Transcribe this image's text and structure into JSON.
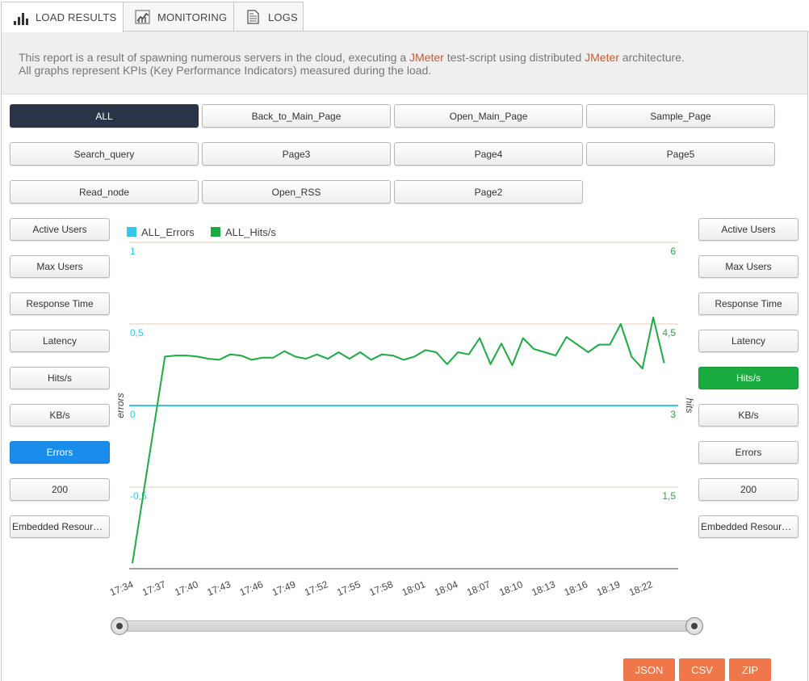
{
  "tabs": [
    {
      "label": "LOAD RESULTS",
      "icon": "bar-chart-icon",
      "active": true
    },
    {
      "label": "MONITORING",
      "icon": "line-chart-icon",
      "active": false
    },
    {
      "label": "LOGS",
      "icon": "document-icon",
      "active": false
    }
  ],
  "description": {
    "part1": "This report is a result of spawning numerous servers in the cloud, executing a ",
    "jmeter1": "JMeter",
    "part2": " test-script using distributed ",
    "jmeter2": "JMeter",
    "part3": " architecture.",
    "line2": "All graphs represent KPIs (Key Performance Indicators) measured during the load."
  },
  "samplers": [
    "ALL",
    "Back_to_Main_Page",
    "Open_Main_Page",
    "Sample_Page",
    "Search_query",
    "Page3",
    "Page4",
    "Page5",
    "Read_node",
    "Open_RSS",
    "Page2"
  ],
  "selected_sampler": "ALL",
  "left_metrics": [
    "Active Users",
    "Max Users",
    "Response Time",
    "Latency",
    "Hits/s",
    "KB/s",
    "Errors",
    "200",
    "Embedded Resources"
  ],
  "left_selected": "Errors",
  "right_metrics": [
    "Active Users",
    "Max Users",
    "Response Time",
    "Latency",
    "Hits/s",
    "KB/s",
    "Errors",
    "200",
    "Embedded Resources"
  ],
  "right_selected": "Hits/s",
  "export": {
    "json": "JSON",
    "csv": "CSV",
    "zip": "ZIP"
  },
  "colors": {
    "errors": "#33c7ec",
    "hits": "#1aac3f",
    "accent_orange": "#f0774a",
    "dark": "#2b3446",
    "blue": "#1a8cec"
  },
  "chart_data": {
    "type": "line",
    "legend": [
      "ALL_Errors",
      "ALL_Hits/s"
    ],
    "legend_position": "top-left",
    "xlabel": "",
    "ylabel_left": "errors",
    "ylabel_right": "hits",
    "ylim_left": [
      -1,
      1
    ],
    "ylim_right": [
      0,
      6
    ],
    "yticks_left": [
      "1",
      "0,5",
      "0",
      "-0,5"
    ],
    "yticks_right": [
      "6",
      "4,5",
      "3",
      "1,5"
    ],
    "xticks": [
      "17:34",
      "17:37",
      "17:40",
      "17:43",
      "17:46",
      "17:49",
      "17:52",
      "17:55",
      "17:58",
      "18:01",
      "18:04",
      "18:07",
      "18:10",
      "18:13",
      "18:16",
      "18:19",
      "18:22"
    ],
    "grid": true,
    "series": [
      {
        "name": "ALL_Errors",
        "axis": "left",
        "x": [
          0,
          50
        ],
        "values": [
          0,
          0
        ]
      },
      {
        "name": "ALL_Hits/s",
        "axis": "right",
        "x": [
          0,
          3,
          4,
          5,
          6,
          7,
          8,
          9,
          10,
          11,
          12,
          13,
          14,
          15,
          16,
          17,
          18,
          19,
          20,
          21,
          22,
          23,
          24,
          25,
          26,
          27,
          28,
          29,
          30,
          31,
          32,
          33,
          34,
          35,
          36,
          37,
          38,
          39,
          40,
          41,
          42,
          43,
          44,
          45,
          46,
          47,
          48,
          49
        ],
        "values": [
          0.1,
          3.9,
          3.92,
          3.92,
          3.9,
          3.86,
          3.84,
          3.94,
          3.92,
          3.84,
          3.88,
          3.88,
          4.0,
          3.9,
          3.86,
          3.94,
          3.86,
          3.98,
          3.86,
          3.98,
          3.84,
          3.94,
          3.92,
          3.84,
          3.9,
          4.02,
          3.98,
          3.76,
          3.98,
          3.94,
          4.24,
          3.76,
          4.14,
          3.74,
          4.24,
          4.04,
          3.98,
          3.92,
          4.26,
          4.12,
          3.98,
          4.12,
          4.12,
          4.5,
          3.9,
          3.68,
          4.62,
          3.78
        ]
      }
    ]
  }
}
